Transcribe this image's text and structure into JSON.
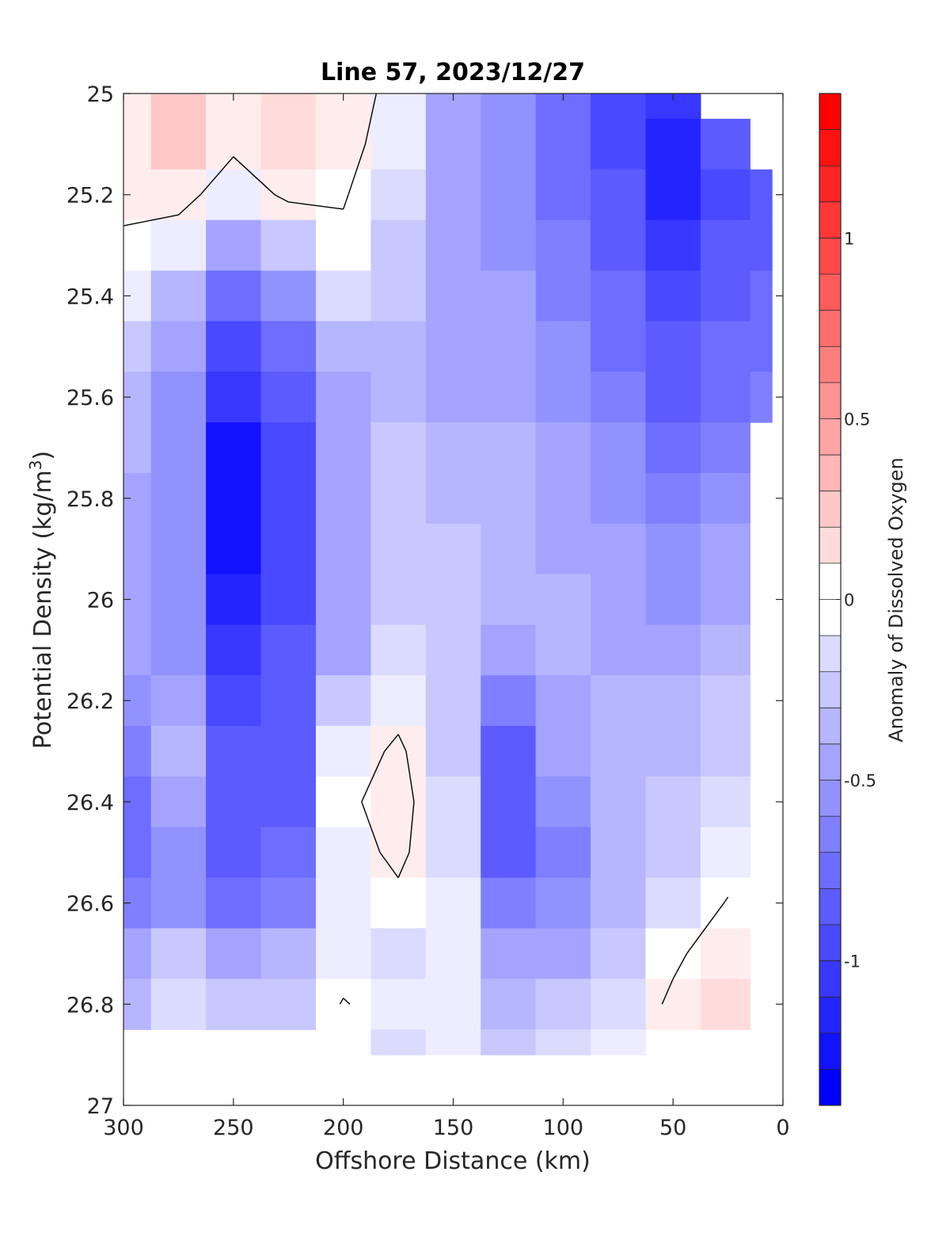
{
  "chart_data": {
    "type": "heatmap",
    "title": "Line 57, 2023/12/27",
    "xlabel": "Offshore Distance (km)",
    "ylabel_main": "Potential Density (kg/m",
    "ylabel_sup": "3",
    "ylabel_close": ")",
    "colorbar_label": "Anomaly of Dissolved Oxygen",
    "xlim": [
      300,
      0
    ],
    "x_direction": "reversed",
    "ylim": [
      25,
      27
    ],
    "y_direction": "reversed",
    "x_ticks": [
      300,
      250,
      200,
      150,
      100,
      50,
      0
    ],
    "x_tick_labels": [
      "300",
      "250",
      "200",
      "150",
      "100",
      "50",
      "0"
    ],
    "y_ticks": [
      25,
      25.2,
      25.4,
      25.6,
      25.8,
      26,
      26.2,
      26.4,
      26.6,
      26.8,
      27
    ],
    "y_tick_labels": [
      "25",
      "25.2",
      "25.4",
      "25.6",
      "25.8",
      "26",
      "26.2",
      "26.4",
      "26.6",
      "26.8",
      "27"
    ],
    "clim": [
      -1.4,
      1.4
    ],
    "colorbar_ticks": [
      1,
      0.5,
      0,
      -0.5,
      -1
    ],
    "colorbar_tick_labels": [
      "1",
      "0.5",
      "0",
      "-0.5",
      "-1"
    ],
    "contour_levels_step": 0.1,
    "colormap": {
      "negative": "#0000ff",
      "zero": "#ffffff",
      "positive": "#ff0000"
    },
    "zero_contour_color": "#000000",
    "grid": false,
    "x": [
      300,
      275,
      250,
      225,
      200,
      175,
      150,
      125,
      100,
      75,
      50,
      25,
      5
    ],
    "y": [
      25.0,
      25.1,
      25.2,
      25.3,
      25.4,
      25.5,
      25.6,
      25.7,
      25.8,
      25.9,
      26.0,
      26.1,
      26.2,
      26.3,
      26.4,
      26.5,
      26.6,
      26.7,
      26.8,
      26.9
    ],
    "z": [
      [
        0.15,
        0.25,
        0.15,
        0.2,
        0.15,
        -0.1,
        -0.5,
        -0.6,
        -0.8,
        -1.0,
        -1.1,
        null,
        null
      ],
      [
        0.15,
        0.25,
        0.05,
        0.2,
        0.1,
        -0.15,
        -0.5,
        -0.6,
        -0.8,
        -1.0,
        -1.2,
        -0.9,
        null
      ],
      [
        0.08,
        0.1,
        -0.15,
        0.05,
        0.02,
        -0.2,
        -0.5,
        -0.6,
        -0.8,
        -0.95,
        -1.2,
        -1.0,
        -0.95
      ],
      [
        -0.05,
        -0.15,
        -0.5,
        -0.3,
        -0.05,
        -0.3,
        -0.55,
        -0.6,
        -0.75,
        -0.9,
        -1.15,
        -0.95,
        -0.9
      ],
      [
        -0.15,
        -0.4,
        -0.8,
        -0.6,
        -0.25,
        -0.35,
        -0.55,
        -0.55,
        -0.7,
        -0.85,
        -1.05,
        -0.9,
        -0.85
      ],
      [
        -0.3,
        -0.55,
        -1.0,
        -0.8,
        -0.45,
        -0.4,
        -0.55,
        -0.55,
        -0.65,
        -0.8,
        -0.95,
        -0.85,
        -0.8
      ],
      [
        -0.4,
        -0.6,
        -1.15,
        -0.95,
        -0.55,
        -0.4,
        -0.5,
        -0.5,
        -0.6,
        -0.7,
        -0.9,
        -0.8,
        -0.75
      ],
      [
        -0.45,
        -0.6,
        -1.3,
        -1.0,
        -0.55,
        -0.35,
        -0.45,
        -0.45,
        -0.55,
        -0.65,
        -0.8,
        -0.7,
        null
      ],
      [
        -0.5,
        -0.6,
        -1.35,
        -1.05,
        -0.55,
        -0.35,
        -0.4,
        -0.45,
        -0.5,
        -0.6,
        -0.75,
        -0.65,
        null
      ],
      [
        -0.55,
        -0.6,
        -1.3,
        -1.05,
        -0.55,
        -0.3,
        -0.35,
        -0.4,
        -0.5,
        -0.55,
        -0.65,
        -0.55,
        null
      ],
      [
        -0.55,
        -0.6,
        -1.2,
        -1.0,
        -0.55,
        -0.3,
        -0.35,
        -0.4,
        -0.45,
        -0.55,
        -0.6,
        -0.5,
        null
      ],
      [
        -0.55,
        -0.6,
        -1.1,
        -0.95,
        -0.5,
        -0.2,
        -0.35,
        -0.5,
        -0.45,
        -0.5,
        -0.5,
        -0.4,
        null
      ],
      [
        -0.65,
        -0.5,
        -1.0,
        -0.95,
        -0.35,
        -0.1,
        -0.3,
        -0.7,
        -0.5,
        -0.45,
        -0.45,
        -0.35,
        null
      ],
      [
        -0.7,
        -0.45,
        -0.95,
        -0.9,
        -0.15,
        0.05,
        -0.3,
        -0.9,
        -0.55,
        -0.45,
        -0.4,
        -0.3,
        null
      ],
      [
        -0.85,
        -0.55,
        -0.95,
        -0.9,
        -0.05,
        0.1,
        -0.25,
        -0.95,
        -0.65,
        -0.45,
        -0.35,
        -0.25,
        null
      ],
      [
        -0.8,
        -0.65,
        -0.9,
        -0.85,
        -0.1,
        0.05,
        -0.2,
        -0.9,
        -0.7,
        -0.45,
        -0.3,
        -0.15,
        null
      ],
      [
        -0.7,
        -0.6,
        -0.8,
        -0.7,
        -0.15,
        -0.05,
        -0.15,
        -0.75,
        -0.65,
        -0.4,
        -0.25,
        0.02,
        null
      ],
      [
        -0.55,
        -0.35,
        -0.5,
        -0.45,
        -0.15,
        -0.2,
        -0.1,
        -0.55,
        -0.55,
        -0.35,
        -0.05,
        0.15,
        null
      ],
      [
        -0.45,
        -0.25,
        -0.35,
        -0.3,
        0.02,
        -0.15,
        -0.1,
        -0.4,
        -0.35,
        -0.2,
        0.05,
        0.2,
        null
      ],
      [
        null,
        null,
        null,
        null,
        null,
        -0.2,
        -0.15,
        -0.3,
        -0.25,
        -0.15,
        null,
        null,
        null
      ]
    ]
  }
}
